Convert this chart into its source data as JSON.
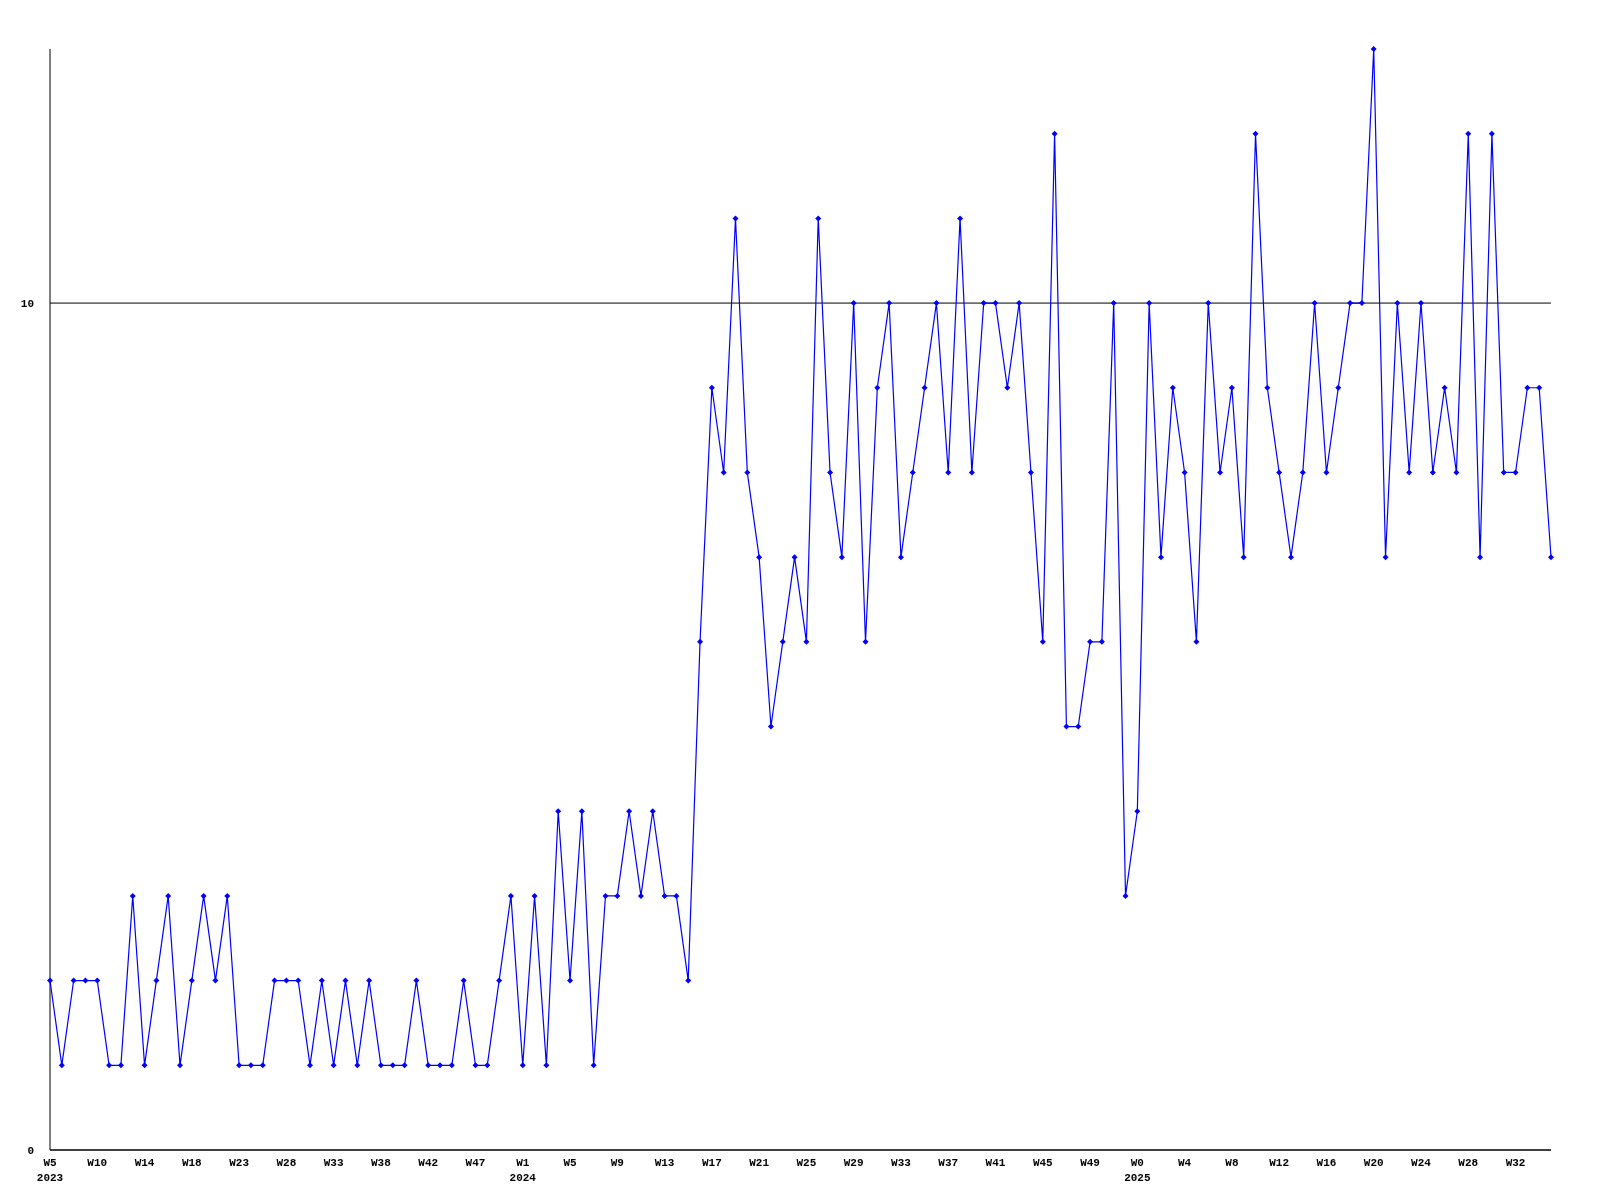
{
  "chart_data": {
    "type": "line",
    "categories": [
      "W5\n2023",
      null,
      null,
      null,
      "W10",
      null,
      null,
      null,
      "W14",
      null,
      null,
      null,
      "W18",
      null,
      null,
      null,
      "W23",
      null,
      null,
      null,
      "W28",
      null,
      null,
      null,
      "W33",
      null,
      null,
      null,
      "W38",
      null,
      null,
      null,
      "W42",
      null,
      null,
      null,
      "W47",
      null,
      null,
      null,
      "W1\n2024",
      null,
      null,
      null,
      "W5",
      null,
      null,
      null,
      "W9",
      null,
      null,
      null,
      "W13",
      null,
      null,
      null,
      "W17",
      null,
      null,
      null,
      "W21",
      null,
      null,
      null,
      "W25",
      null,
      null,
      null,
      "W29",
      null,
      null,
      null,
      "W33",
      null,
      null,
      null,
      "W37",
      null,
      null,
      null,
      "W41",
      null,
      null,
      null,
      "W45",
      null,
      null,
      null,
      "W49",
      null,
      null,
      null,
      "W0\n2025",
      null,
      null,
      null,
      "W4",
      null,
      null,
      null,
      "W8",
      null,
      null,
      null,
      "W12",
      null,
      null,
      null,
      "W16",
      null,
      null,
      null,
      "W20",
      null,
      null,
      null,
      "W24",
      null,
      null,
      null,
      "W28",
      null,
      null,
      null,
      "W32",
      null,
      null,
      null
    ],
    "series": [
      {
        "color": "#0000ff",
        "values": [
          2,
          1,
          2,
          2,
          2,
          1,
          1,
          3,
          1,
          2,
          3,
          1,
          2,
          3,
          2,
          3,
          1,
          1,
          1,
          2,
          2,
          2,
          1,
          2,
          1,
          2,
          1,
          2,
          1,
          1,
          1,
          2,
          1,
          1,
          1,
          2,
          1,
          1,
          2,
          3,
          1,
          3,
          1,
          4,
          2,
          4,
          1,
          3,
          3,
          4,
          3,
          4,
          3,
          3,
          2,
          6,
          9,
          8,
          11,
          8,
          7,
          5,
          6,
          7,
          6,
          11,
          8,
          7,
          10,
          6,
          9,
          10,
          7,
          8,
          9,
          10,
          8,
          11,
          8,
          10,
          10,
          9,
          10,
          8,
          6,
          12,
          5,
          5,
          6,
          6,
          10,
          3,
          4,
          10,
          7,
          9,
          8,
          6,
          10,
          8,
          9,
          7,
          12,
          9,
          8,
          7,
          8,
          10,
          8,
          9,
          10,
          10,
          13,
          7,
          10,
          8,
          10,
          8,
          9,
          8,
          12,
          7,
          12,
          8,
          8,
          9,
          9,
          7
        ]
      }
    ],
    "ylim": [
      0,
      13
    ],
    "yticks": [
      0,
      10
    ],
    "grid": "y",
    "marker": "diamond",
    "line_style": "solid"
  }
}
